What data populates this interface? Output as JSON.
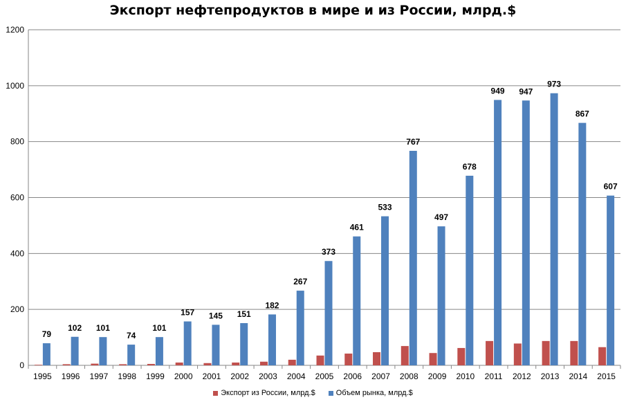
{
  "chart_data": {
    "type": "bar",
    "title": "Экспорт нефтепродуктов в мире и из России, млрд.$",
    "categories": [
      "1995",
      "1996",
      "1997",
      "1998",
      "1999",
      "2000",
      "2001",
      "2002",
      "2003",
      "2004",
      "2005",
      "2006",
      "2007",
      "2008",
      "2009",
      "2010",
      "2011",
      "2012",
      "2013",
      "2014",
      "2015"
    ],
    "series": [
      {
        "name": "Экспорт из России, млрд.$",
        "color": "#c0504d",
        "values": [
          2,
          4,
          6,
          4,
          5,
          10,
          8,
          10,
          13,
          20,
          35,
          42,
          47,
          69,
          44,
          62,
          87,
          78,
          87,
          87,
          65
        ]
      },
      {
        "name": "Объем рынка, млрд.$",
        "color": "#4f81bd",
        "values": [
          79,
          102,
          101,
          74,
          101,
          157,
          145,
          151,
          182,
          267,
          373,
          461,
          533,
          767,
          497,
          678,
          949,
          947,
          973,
          867,
          607
        ]
      }
    ],
    "data_labels_series": 1,
    "ylim": [
      0,
      1200
    ],
    "yticks": [
      0,
      200,
      400,
      600,
      800,
      1000,
      1200
    ],
    "grid": true,
    "legend": "bottom"
  }
}
